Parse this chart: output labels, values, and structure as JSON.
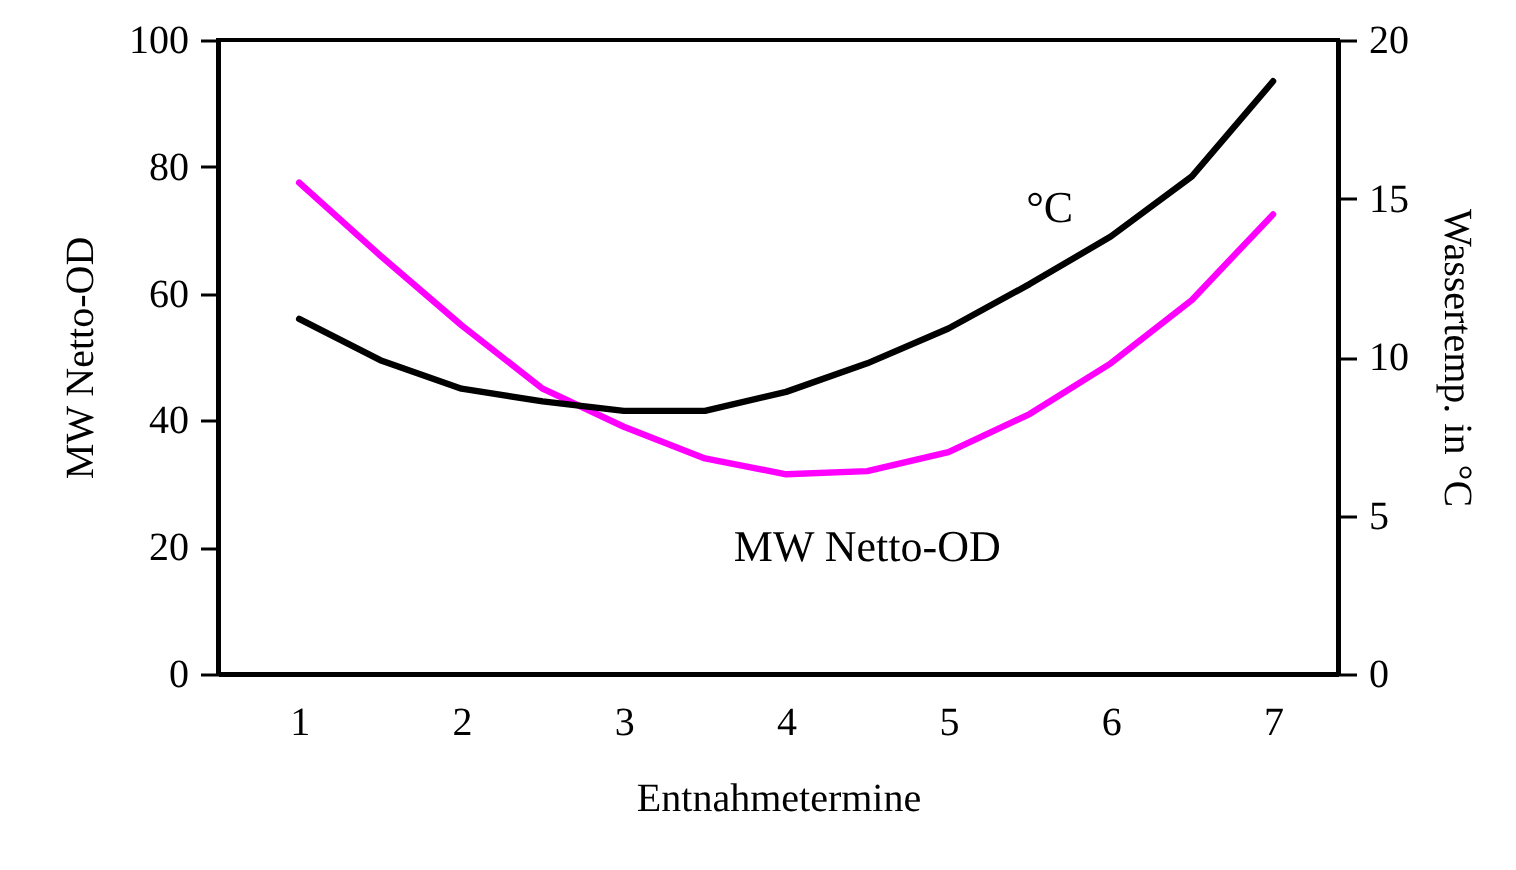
{
  "chart_data": {
    "type": "line",
    "xlabel": "Entnahmetermine",
    "ylabel": "MW Netto-OD",
    "y2label": "Wassertemp. in °C",
    "x": [
      1,
      1.5,
      2,
      2.5,
      3,
      3.5,
      4,
      4.5,
      5,
      5.5,
      6,
      6.5,
      7
    ],
    "xlim": [
      0.5,
      7.4
    ],
    "xticks": [
      1,
      2,
      3,
      4,
      5,
      6,
      7
    ],
    "ylim": [
      0,
      100
    ],
    "yticks": [
      0,
      20,
      40,
      60,
      80,
      100
    ],
    "y2lim": [
      0,
      20
    ],
    "y2ticks": [
      0,
      5,
      10,
      15,
      20
    ],
    "series": [
      {
        "name": "MW Netto-OD",
        "color": "#ff00ff",
        "values": [
          77.5,
          66,
          55,
          45,
          39,
          34,
          31.5,
          32,
          35,
          41,
          49,
          59,
          72.5
        ]
      },
      {
        "name": "°C",
        "color": "#000000",
        "axis": "y2",
        "values": [
          11.2,
          9.9,
          9.0,
          8.6,
          8.3,
          8.3,
          8.9,
          9.8,
          10.9,
          12.3,
          13.8,
          15.7,
          18.7
        ]
      }
    ],
    "grid": false,
    "legend": false,
    "marker": "none",
    "line_style": "solid"
  }
}
